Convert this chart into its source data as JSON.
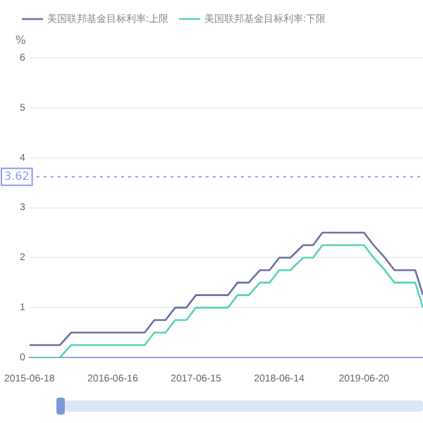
{
  "chart_data": {
    "type": "line",
    "ylabel": "%",
    "x": [
      "2015-06-18",
      "2015-07-30",
      "2015-09-18",
      "2015-10-29",
      "2015-12-17",
      "2016-01-28",
      "2016-03-17",
      "2016-04-28",
      "2016-06-16",
      "2016-07-28",
      "2016-09-22",
      "2016-11-03",
      "2016-12-15",
      "2017-02-02",
      "2017-03-16",
      "2017-05-04",
      "2017-06-15",
      "2017-07-27",
      "2017-09-21",
      "2017-11-02",
      "2017-12-14",
      "2018-02-01",
      "2018-03-22",
      "2018-05-03",
      "2018-06-14",
      "2018-08-02",
      "2018-09-27",
      "2018-11-09",
      "2018-12-20",
      "2019-01-31",
      "2019-03-21",
      "2019-05-02",
      "2019-06-20",
      "2019-08-01",
      "2019-09-19",
      "2019-10-31",
      "2019-12-12",
      "2020-01-30",
      "2020-03-04"
    ],
    "series": [
      {
        "name": "美国联邦基金目标利率:上限",
        "color": "#6e71a8",
        "values": [
          0.25,
          0.25,
          0.25,
          0.25,
          0.5,
          0.5,
          0.5,
          0.5,
          0.5,
          0.5,
          0.5,
          0.5,
          0.75,
          0.75,
          1,
          1,
          1.25,
          1.25,
          1.25,
          1.25,
          1.5,
          1.5,
          1.75,
          1.75,
          2,
          2,
          2.25,
          2.25,
          2.5,
          2.5,
          2.5,
          2.5,
          2.5,
          2.25,
          2,
          1.75,
          1.75,
          1.75,
          1.25
        ]
      },
      {
        "name": "美国联邦基金目标利率:下限",
        "color": "#5ad3b8",
        "values": [
          0,
          0,
          0,
          0,
          0.25,
          0.25,
          0.25,
          0.25,
          0.25,
          0.25,
          0.25,
          0.25,
          0.5,
          0.5,
          0.75,
          0.75,
          1,
          1,
          1,
          1,
          1.25,
          1.25,
          1.5,
          1.5,
          1.75,
          1.75,
          2,
          2,
          2.25,
          2.25,
          2.25,
          2.25,
          2.25,
          2,
          1.75,
          1.5,
          1.5,
          1.5,
          1
        ]
      }
    ],
    "xlim": [
      "2015-06-18",
      "2020-03-04"
    ],
    "xticks": [
      "2015-06-18",
      "2016-06-16",
      "2017-06-15",
      "2018-06-14",
      "2019-06-20"
    ],
    "ylim": [
      0,
      6
    ],
    "yticks": [
      0,
      1,
      2,
      3,
      4,
      5,
      6
    ],
    "ref_lines": [
      {
        "axis": "y",
        "value": 3.62,
        "label": "3.62",
        "color": "#8f9cf0",
        "line_style": "dotted"
      }
    ],
    "grid": "y",
    "legend": "top left",
    "marker": "none",
    "line_style": "solid"
  }
}
